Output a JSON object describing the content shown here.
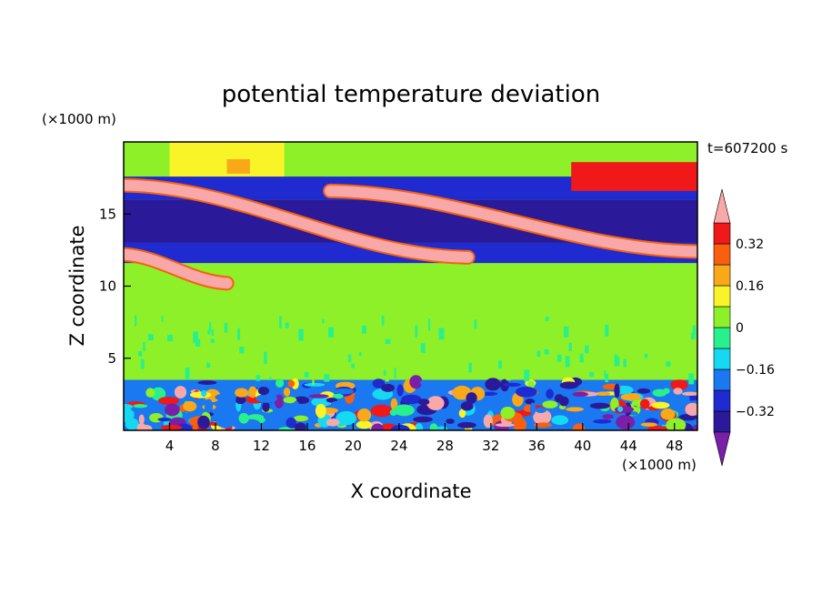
{
  "chart_data": {
    "type": "heatmap",
    "title": "potential temperature deviation",
    "xlabel": "X coordinate",
    "ylabel": "Z coordinate",
    "x_unit": "(×1000 m)",
    "y_unit": "(×1000 m)",
    "time_label": "t=607200 s",
    "xlim": [
      0,
      50
    ],
    "ylim": [
      0,
      20
    ],
    "x_ticks": [
      4,
      8,
      12,
      16,
      20,
      24,
      28,
      32,
      36,
      40,
      44,
      48
    ],
    "y_ticks": [
      5,
      10,
      15
    ],
    "colorbar": {
      "levels": [
        -0.4,
        -0.32,
        -0.24,
        -0.16,
        -0.08,
        0,
        0.08,
        0.16,
        0.24,
        0.32,
        0.4
      ],
      "labeled_ticks": [
        0.32,
        0.16,
        0,
        -0.16,
        -0.32
      ],
      "colors": [
        "#7a1fa8",
        "#2a1a9a",
        "#1f2bd0",
        "#1a78f0",
        "#16d8f0",
        "#28f08c",
        "#8ef028",
        "#f8f428",
        "#f8a818",
        "#f86010",
        "#f01818",
        "#f8a8a8"
      ]
    },
    "regions": [
      {
        "x0": 0,
        "x1": 50,
        "z0": 0,
        "z1": 20,
        "value": 0.0
      },
      {
        "x0": 0,
        "x1": 50,
        "z0": 4.0,
        "z1": 11.5,
        "value": 0.0
      },
      {
        "x0": 0,
        "x1": 50,
        "z0": 4.2,
        "z1": 5.6,
        "value": 0.06
      },
      {
        "x0": 0,
        "x1": 50,
        "z0": 6.0,
        "z1": 7.0,
        "value": 0.06
      },
      {
        "x0": 0,
        "x1": 50,
        "z0": 7.8,
        "z1": 8.6,
        "value": 0.06
      },
      {
        "x0": 0,
        "x1": 50,
        "z0": 9.0,
        "z1": 10.0,
        "value": 0.06
      },
      {
        "x0": 0,
        "x1": 50,
        "z0": 10.8,
        "z1": 11.6,
        "value": 0.06
      },
      {
        "x0": 0,
        "x1": 50,
        "z0": 11.6,
        "z1": 13.0,
        "value": -0.3
      },
      {
        "x0": 0,
        "x1": 50,
        "z0": 13.0,
        "z1": 16.0,
        "value": -0.36
      },
      {
        "x0": 0,
        "x1": 50,
        "z0": 16.0,
        "z1": 17.6,
        "value": -0.3
      },
      {
        "x0": 0,
        "x1": 50,
        "z0": 17.6,
        "z1": 20.0,
        "value": 0.0
      },
      {
        "x0": 4,
        "x1": 14,
        "z0": 17.6,
        "z1": 20.0,
        "value": 0.1
      },
      {
        "x0": 9,
        "x1": 11,
        "z0": 17.8,
        "z1": 18.8,
        "value": 0.2
      },
      {
        "x0": 39,
        "x1": 50,
        "z0": 16.6,
        "z1": 18.6,
        "value": 0.36
      },
      {
        "x0": 0,
        "x1": 50,
        "z0": 0,
        "z1": 3.5,
        "value": -0.2
      }
    ],
    "warm_filaments": [
      {
        "x0": 0,
        "z0": 17.0,
        "x1": 30,
        "z1": 12.0,
        "value": 0.45
      },
      {
        "x0": 18,
        "z0": 16.6,
        "x1": 50,
        "z1": 12.4,
        "value": 0.45
      },
      {
        "x0": 0,
        "z0": 12.2,
        "x1": 9,
        "z1": 10.2,
        "value": 0.45
      }
    ]
  }
}
